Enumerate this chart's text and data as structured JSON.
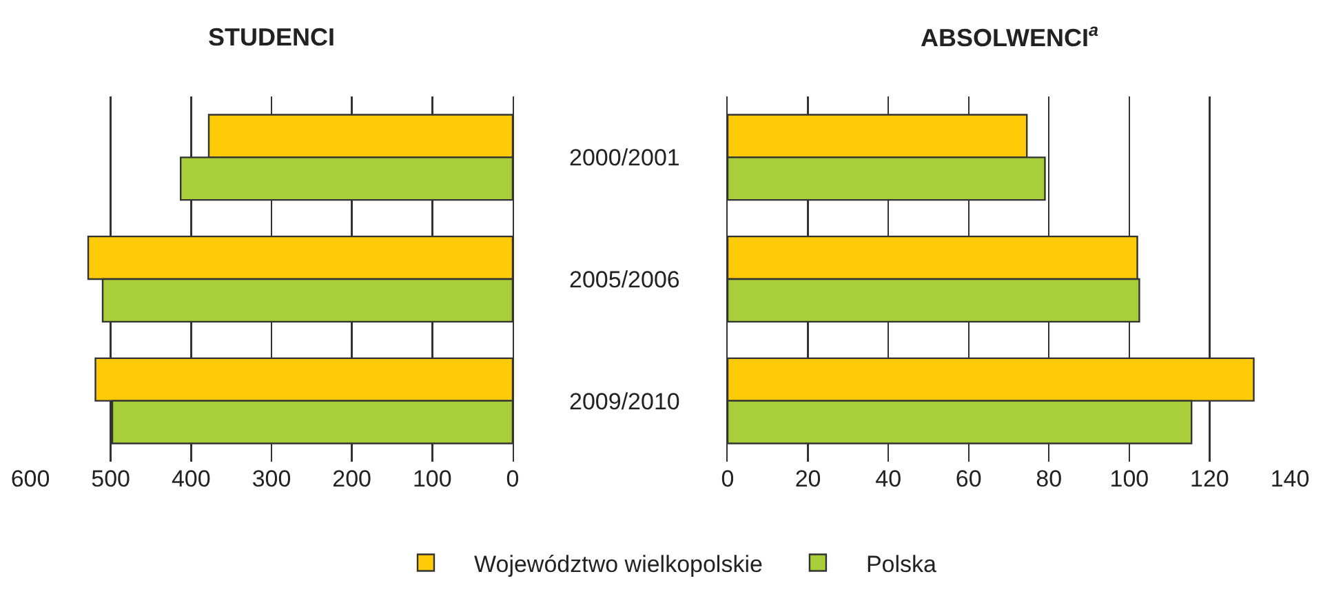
{
  "chart_data": [
    {
      "type": "bar",
      "title": "STUDENCI",
      "orientation": "horizontal",
      "categories": [
        null,
        null,
        null
      ],
      "series": [
        {
          "name": "Województwo wielkopolskie",
          "color": "#ffcb08",
          "values": [
            378,
            528,
            519
          ]
        },
        {
          "name": "Polska",
          "color": "#a8cf3a",
          "values": [
            413,
            510,
            498
          ]
        }
      ],
      "xlim": [
        600,
        0
      ],
      "xticks": [
        600,
        500,
        400,
        300,
        200,
        100,
        0
      ],
      "grid": "x",
      "legend": "bottom"
    },
    {
      "type": "bar",
      "title": "ABSOLWENCI$^{a}$",
      "orientation": "horizontal",
      "categories": [
        "2000/2001",
        "2005/2006",
        "2009/2010"
      ],
      "series": [
        {
          "name": "Województwo wielkopolskie",
          "color": "#ffcb08",
          "values": [
            74.5,
            102,
            131
          ]
        },
        {
          "name": "Polska",
          "color": "#a8cf3a",
          "values": [
            79,
            102.5,
            115.5
          ]
        }
      ],
      "xlim": [
        0,
        140
      ],
      "xticks": [
        0,
        20,
        40,
        60,
        80,
        100,
        120,
        140
      ],
      "grid": "x",
      "legend": "bottom"
    }
  ]
}
